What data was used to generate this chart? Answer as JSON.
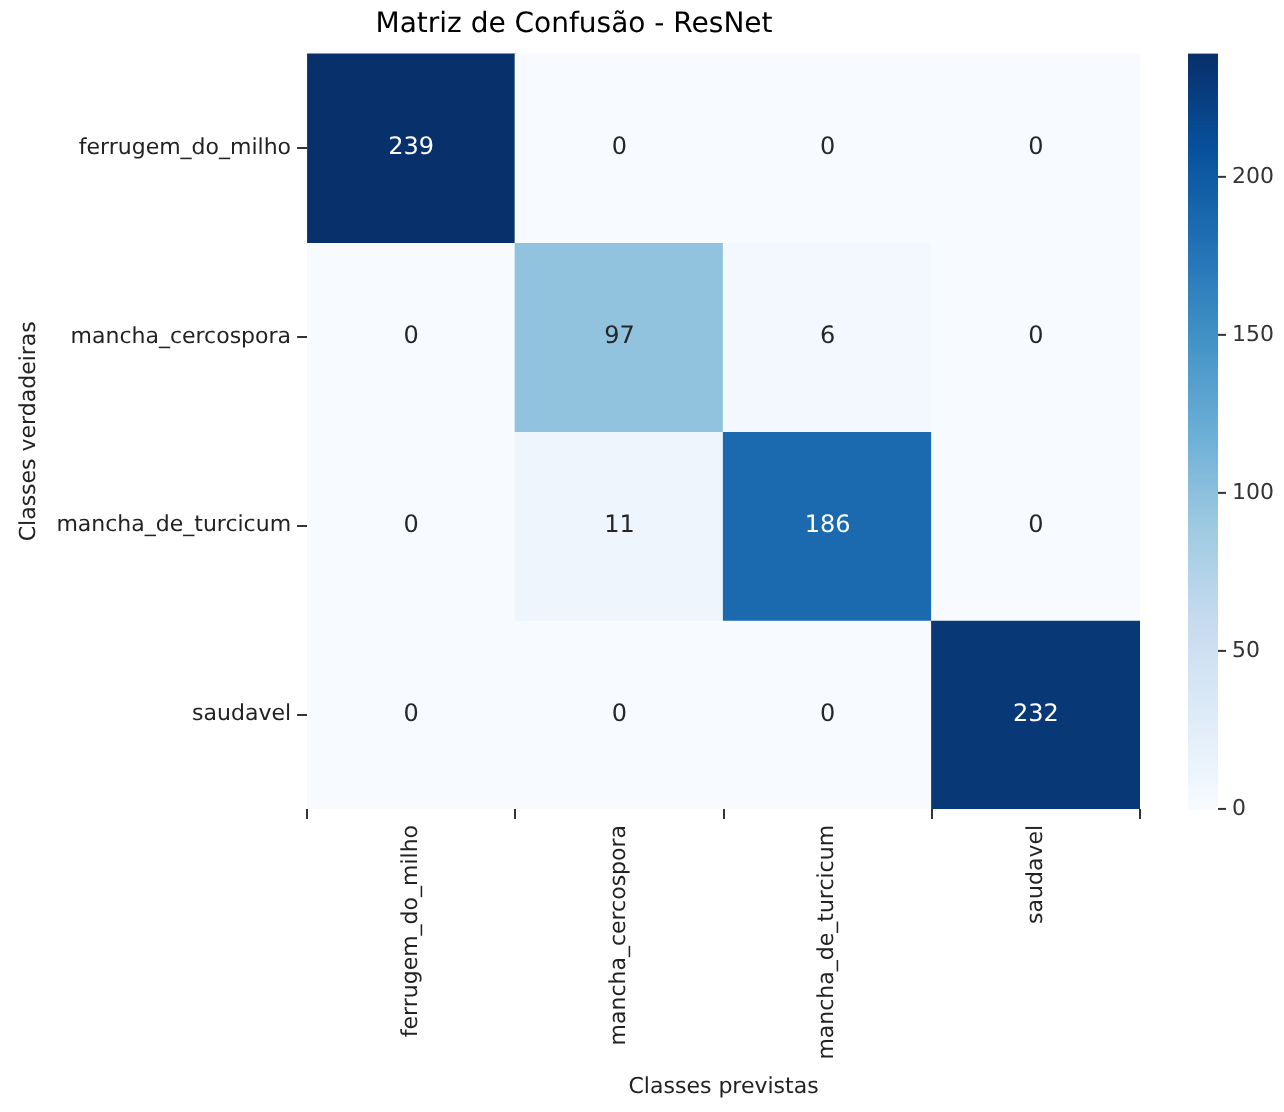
{
  "chart_data": {
    "type": "heatmap",
    "title": "Matriz de Confusão - ResNet",
    "xlabel": "Classes previstas",
    "ylabel": "Classes verdadeiras",
    "categories": [
      "ferrugem_do_milho",
      "mancha_cercospora",
      "mancha_de_turcicum",
      "saudavel"
    ],
    "y_categories": [
      "ferrugem_do_milho",
      "mancha_cercospora",
      "mancha_de_turcicum",
      "saudavel"
    ],
    "cells": [
      [
        239,
        0,
        0,
        0
      ],
      [
        0,
        97,
        6,
        0
      ],
      [
        0,
        11,
        186,
        0
      ],
      [
        0,
        0,
        0,
        232
      ]
    ],
    "clim": [
      0,
      239
    ],
    "cticks": [
      0,
      50,
      100,
      150,
      200
    ],
    "data_labels": true
  }
}
